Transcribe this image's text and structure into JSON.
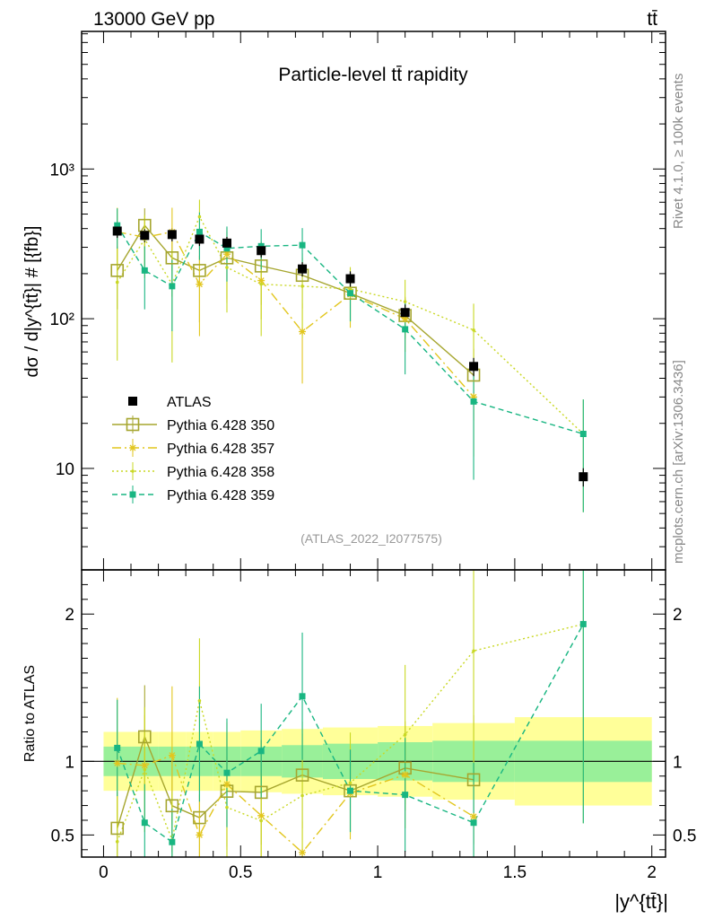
{
  "header": {
    "energy_label": "13000 GeV pp",
    "process_label": "tt̄"
  },
  "side_labels": {
    "rivet": "Rivet 4.1.0, ≥ 100k events",
    "source": "mcplots.cern.ch [arXiv:1306.3436]"
  },
  "chart_data": {
    "type": "scatter",
    "title": "Particle-level tt̄ rapidity",
    "analysis_id": "(ATLAS_2022_I2077575)",
    "xlabel": "|y^{tt̄}|",
    "ylabel": "dσ / d|y^{tt̄}| # [{fb}]",
    "ratio_ylabel": "Ratio to ATLAS",
    "xlim": [
      -0.08,
      2.05
    ],
    "ylim": [
      2.1,
      8300
    ],
    "yscale": "log",
    "ratio_ylim": [
      0.35,
      2.3
    ],
    "x_ticks": [
      0,
      0.5,
      1,
      1.5,
      2
    ],
    "x_tick_labels": [
      "0",
      "0.5",
      "1",
      "1.5",
      "2"
    ],
    "y_ticks": [
      10,
      100,
      1000
    ],
    "y_tick_labels": [
      "10",
      "10²",
      "10³"
    ],
    "ratio_ticks": [
      0.5,
      1,
      2
    ],
    "ratio_tick_labels": [
      "0.5",
      "1",
      "2"
    ],
    "bins": [
      [
        0,
        0.1
      ],
      [
        0.1,
        0.2
      ],
      [
        0.2,
        0.3
      ],
      [
        0.3,
        0.4
      ],
      [
        0.4,
        0.5
      ],
      [
        0.5,
        0.65
      ],
      [
        0.65,
        0.8
      ],
      [
        0.8,
        1.0
      ],
      [
        1.0,
        1.2
      ],
      [
        1.2,
        1.5
      ],
      [
        1.5,
        2.0
      ]
    ],
    "x": [
      0.05,
      0.15,
      0.25,
      0.35,
      0.45,
      0.575,
      0.725,
      0.9,
      1.1,
      1.35,
      1.75
    ],
    "data": {
      "name": "ATLAS",
      "values": [
        385,
        360,
        365,
        340,
        320,
        285,
        215,
        185,
        110,
        48,
        8.8
      ],
      "band_inner": [
        0.1,
        0.1,
        0.1,
        0.1,
        0.1,
        0.1,
        0.11,
        0.12,
        0.13,
        0.14,
        0.14
      ],
      "band_outer": [
        0.2,
        0.2,
        0.2,
        0.2,
        0.2,
        0.21,
        0.22,
        0.23,
        0.24,
        0.26,
        0.3
      ]
    },
    "series": [
      {
        "name": "Pythia 6.428 350",
        "color": "#a6a62f",
        "dash": "",
        "marker": "open-square",
        "values": [
          210,
          420,
          255,
          210,
          255,
          225,
          195,
          148,
          105,
          42,
          null
        ],
        "rel_err": [
          0.45,
          0.3,
          0.45,
          0.55,
          0.5,
          0.45,
          0.4,
          0.35,
          0.3,
          0.5,
          null
        ]
      },
      {
        "name": "Pythia 6.428 357",
        "color": "#e2c61e",
        "dash": "10,4,2,4",
        "marker": "star",
        "values": [
          380,
          350,
          380,
          170,
          270,
          180,
          82,
          145,
          100,
          30,
          null
        ],
        "rel_err": [
          0.45,
          0.35,
          0.45,
          0.55,
          0.5,
          0.45,
          0.55,
          0.4,
          0.4,
          0.6,
          null
        ]
      },
      {
        "name": "Pythia 6.428 358",
        "color": "#c9d824",
        "dash": "2,3",
        "marker": "dot",
        "values": [
          175,
          340,
          170,
          480,
          220,
          170,
          165,
          158,
          130,
          84,
          17
        ],
        "rel_err": [
          0.7,
          0.45,
          0.7,
          0.3,
          0.5,
          0.55,
          0.55,
          0.4,
          0.4,
          0.5,
          0.7
        ]
      },
      {
        "name": "Pythia 6.428 359",
        "color": "#19b682",
        "dash": "6,4",
        "marker": "filled-square",
        "values": [
          420,
          210,
          165,
          380,
          295,
          305,
          310,
          148,
          85,
          28,
          17
        ],
        "rel_err": [
          0.3,
          0.45,
          0.5,
          0.35,
          0.4,
          0.3,
          0.3,
          0.35,
          0.5,
          0.7,
          0.7
        ]
      }
    ]
  }
}
